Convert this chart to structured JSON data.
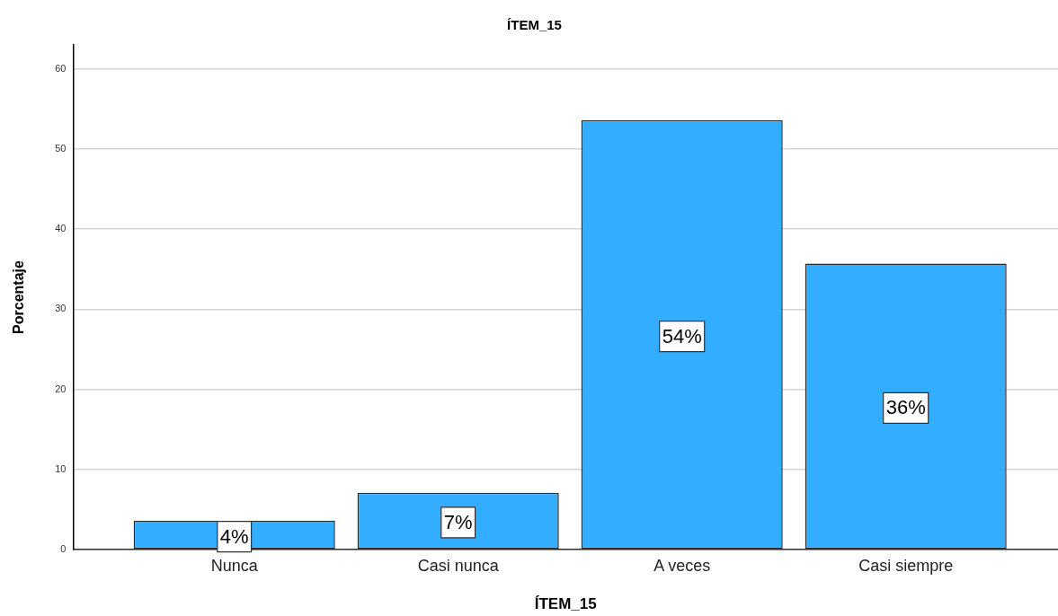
{
  "chart_data": {
    "type": "bar",
    "title": "ÍTEM_15",
    "xlabel": "ÍTEM_15",
    "ylabel": "Porcentaje",
    "categories": [
      "Nunca",
      "Casi nunca",
      "A veces",
      "Casi siempre"
    ],
    "values": [
      3.6,
      7.1,
      53.6,
      35.7
    ],
    "color": "#33adff",
    "value_labels": [
      "4%",
      "7%",
      "54%",
      "36%"
    ],
    "ylim": [
      0,
      63
    ],
    "yticks": [
      0,
      10,
      20,
      30,
      40,
      50,
      60
    ],
    "grid": "y"
  }
}
